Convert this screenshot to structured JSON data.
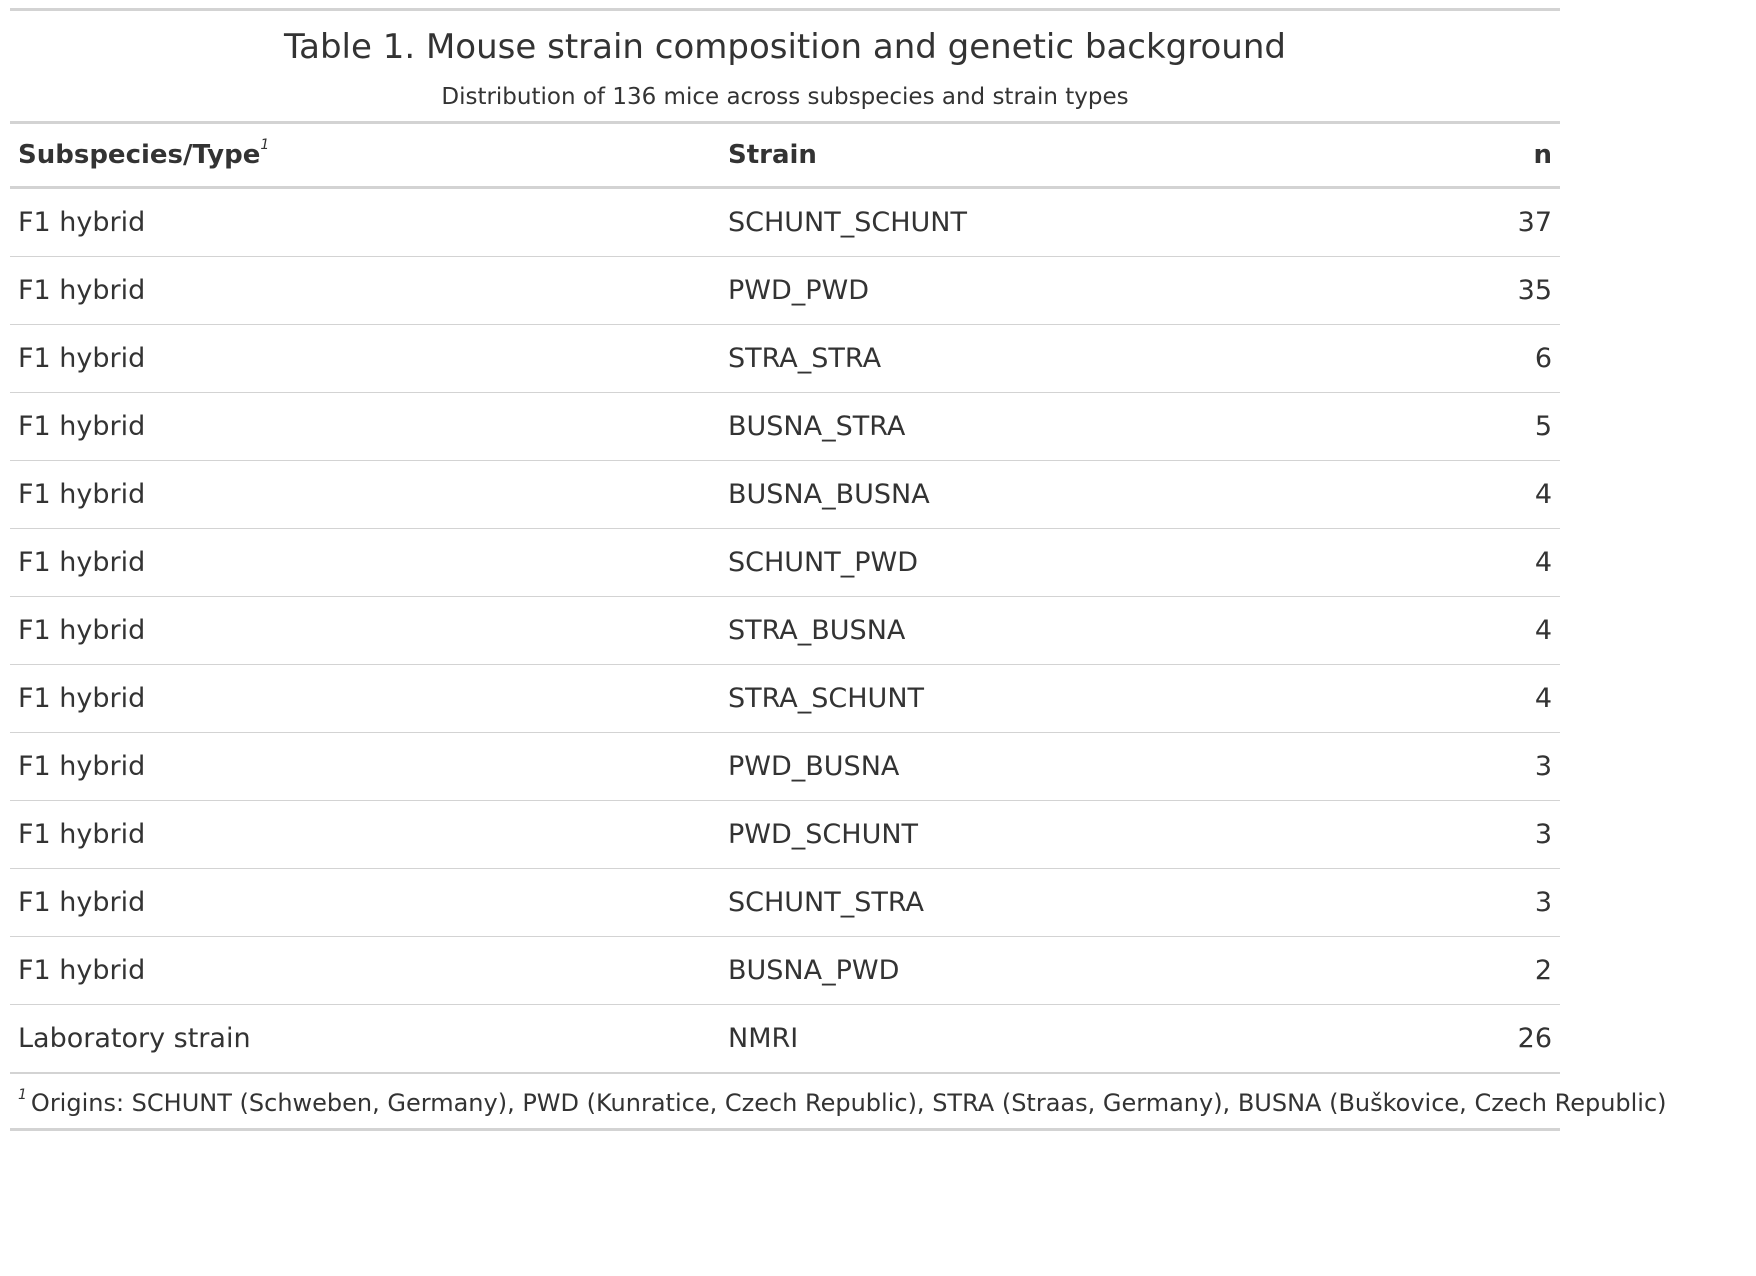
{
  "table": {
    "title": "Table 1. Mouse strain composition and genetic background",
    "subtitle": "Distribution of 136 mice across subspecies and strain types",
    "headers": {
      "subspecies": "Subspecies/Type",
      "subspecies_footnote_mark": "1",
      "strain": "Strain",
      "n": "n"
    },
    "rows": [
      {
        "type": "F1 hybrid",
        "strain": "SCHUNT_SCHUNT",
        "n": "37"
      },
      {
        "type": "F1 hybrid",
        "strain": "PWD_PWD",
        "n": "35"
      },
      {
        "type": "F1 hybrid",
        "strain": "STRA_STRA",
        "n": "6"
      },
      {
        "type": "F1 hybrid",
        "strain": "BUSNA_STRA",
        "n": "5"
      },
      {
        "type": "F1 hybrid",
        "strain": "BUSNA_BUSNA",
        "n": "4"
      },
      {
        "type": "F1 hybrid",
        "strain": "SCHUNT_PWD",
        "n": "4"
      },
      {
        "type": "F1 hybrid",
        "strain": "STRA_BUSNA",
        "n": "4"
      },
      {
        "type": "F1 hybrid",
        "strain": "STRA_SCHUNT",
        "n": "4"
      },
      {
        "type": "F1 hybrid",
        "strain": "PWD_BUSNA",
        "n": "3"
      },
      {
        "type": "F1 hybrid",
        "strain": "PWD_SCHUNT",
        "n": "3"
      },
      {
        "type": "F1 hybrid",
        "strain": "SCHUNT_STRA",
        "n": "3"
      },
      {
        "type": "F1 hybrid",
        "strain": "BUSNA_PWD",
        "n": "2"
      },
      {
        "type": "Laboratory strain",
        "strain": "NMRI",
        "n": "26"
      }
    ],
    "footnote": {
      "mark": "1",
      "text": "Origins: SCHUNT (Schweben, Germany), PWD (Kunratice, Czech Republic), STRA (Straas, Germany), BUSNA (Buškovice, Czech Republic)"
    }
  }
}
